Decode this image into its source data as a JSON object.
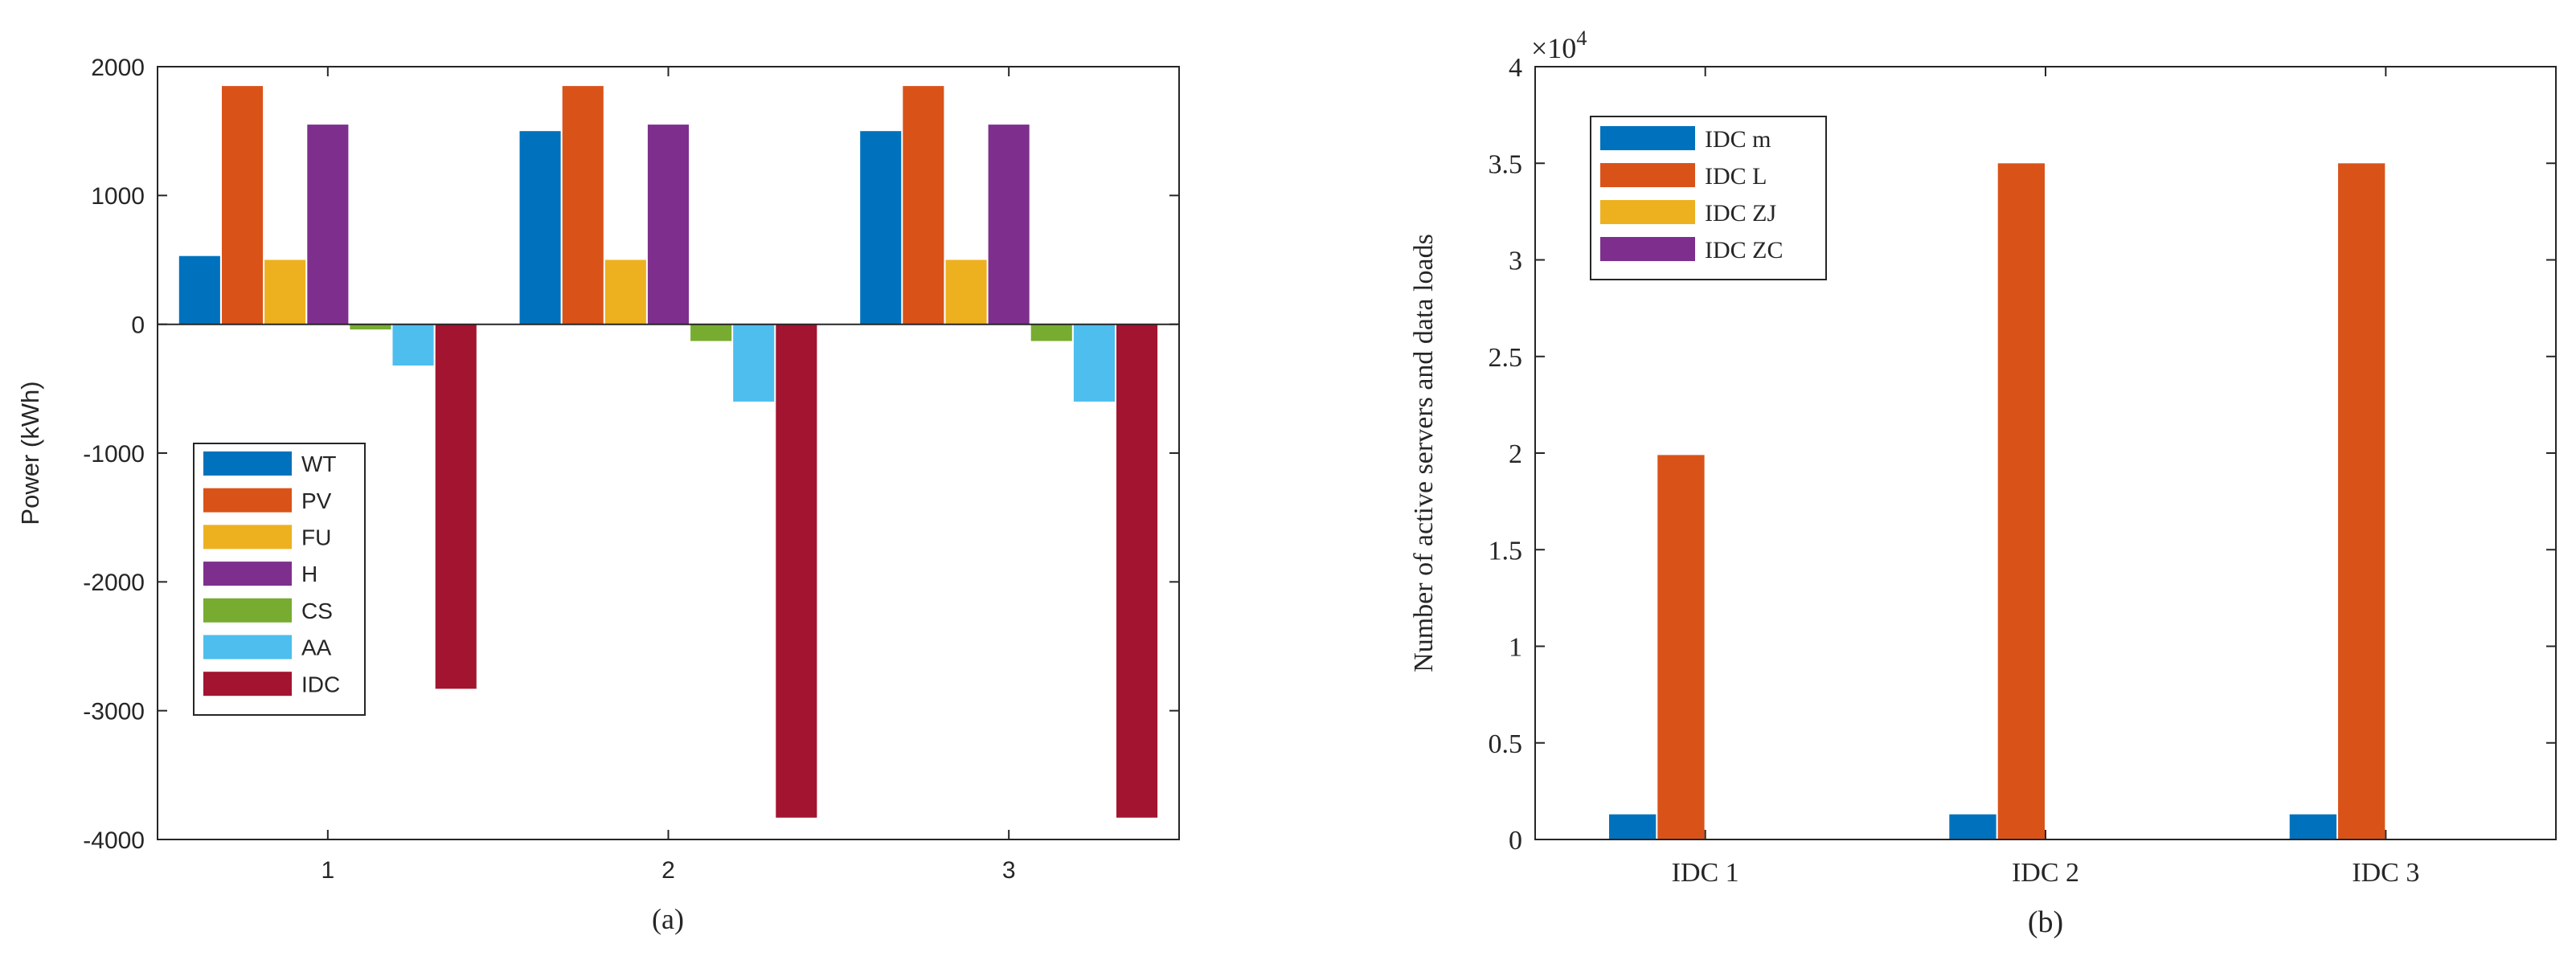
{
  "chart_data": [
    {
      "type": "bar",
      "caption": "(a)",
      "title": "",
      "xlabel": "",
      "ylabel": "Power  (kWh)",
      "categories": [
        "1",
        "2",
        "3"
      ],
      "ylim": [
        -4000,
        2000
      ],
      "yticks": [
        "-4000",
        "-3000",
        "-2000",
        "-1000",
        "0",
        "1000",
        "2000"
      ],
      "ytick_values": [
        -4000,
        -3000,
        -2000,
        -1000,
        0,
        1000,
        2000
      ],
      "grid": false,
      "legend_position": "lower-left",
      "series": [
        {
          "name": "WT",
          "color": "#0072bd",
          "values": [
            530,
            1500,
            1500
          ]
        },
        {
          "name": "PV",
          "color": "#d95319",
          "values": [
            1850,
            1850,
            1850
          ]
        },
        {
          "name": "FU",
          "color": "#edb120",
          "values": [
            500,
            500,
            500
          ]
        },
        {
          "name": "H",
          "color": "#7e2f8e",
          "values": [
            1550,
            1550,
            1550
          ]
        },
        {
          "name": "CS",
          "color": "#77ac30",
          "values": [
            -40,
            -130,
            -130
          ]
        },
        {
          "name": "AA",
          "color": "#4dbeee",
          "values": [
            -320,
            -600,
            -600
          ]
        },
        {
          "name": "IDC",
          "color": "#a2142f",
          "values": [
            -2830,
            -3830,
            -3830
          ]
        }
      ]
    },
    {
      "type": "bar",
      "caption": "(b)",
      "title": "",
      "xlabel": "",
      "ylabel": "Number of active servers and data loads",
      "exponent_base": "×10",
      "exponent_power": "4",
      "categories": [
        "IDC 1",
        "IDC 2",
        "IDC 3"
      ],
      "ylim": [
        0,
        4
      ],
      "yticks": [
        "0",
        "0.5",
        "1",
        "1.5",
        "2",
        "2.5",
        "3",
        "3.5",
        "4"
      ],
      "ytick_values": [
        0,
        0.5,
        1,
        1.5,
        2,
        2.5,
        3,
        3.5,
        4
      ],
      "grid": false,
      "legend_position": "top-left",
      "series": [
        {
          "name": "IDC m",
          "color": "#0072bd",
          "values": [
            0.13,
            0.13,
            0.13
          ]
        },
        {
          "name": "IDC L",
          "color": "#d95319",
          "values": [
            1.99,
            3.5,
            3.5
          ]
        },
        {
          "name": "IDC ZJ",
          "color": "#edb120",
          "values": [
            0,
            0,
            0
          ]
        },
        {
          "name": "IDC ZC",
          "color": "#7e2f8e",
          "values": [
            0,
            0,
            0
          ]
        }
      ]
    }
  ]
}
